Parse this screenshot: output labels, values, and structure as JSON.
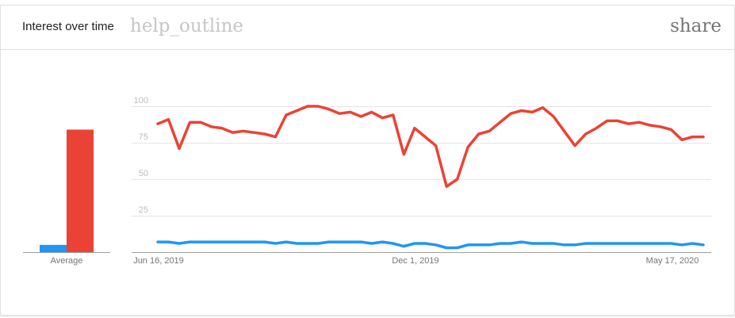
{
  "header": {
    "title": "Interest over time",
    "help_icon_text": "help_outline",
    "share_icon_text": "share"
  },
  "colors": {
    "series_red": "#ea4335",
    "series_blue": "#2196f3",
    "grid": "#e6e6e6",
    "tick_text": "#bdbdbd",
    "axis_label": "#757575"
  },
  "chart_data": [
    {
      "type": "bar",
      "categories": [
        "Average"
      ],
      "series": [
        {
          "values": [
            5
          ]
        },
        {
          "values": [
            84
          ]
        }
      ],
      "ylim": [
        0,
        100
      ]
    },
    {
      "type": "line",
      "y_ticks": [
        25,
        50,
        75,
        100
      ],
      "x_tick_labels": [
        "Jun 16, 2019",
        "Dec 1, 2019",
        "May 17, 2020"
      ],
      "ylim": [
        0,
        100
      ],
      "grid": true,
      "series": [
        {
          "values": [
            88,
            91,
            71,
            89,
            89,
            86,
            85,
            82,
            83,
            82,
            81,
            79,
            94,
            97,
            100,
            100,
            98,
            95,
            96,
            93,
            96,
            92,
            94,
            67,
            85,
            79,
            73,
            45,
            50,
            72,
            81,
            83,
            89,
            95,
            97,
            96,
            99,
            93,
            83,
            73,
            81,
            85,
            90,
            90,
            88,
            89,
            87,
            86,
            84,
            77,
            79,
            79
          ]
        },
        {
          "values": [
            7,
            7,
            6,
            7,
            7,
            7,
            7,
            7,
            7,
            7,
            7,
            6,
            7,
            6,
            6,
            6,
            7,
            7,
            7,
            7,
            6,
            7,
            6,
            4,
            6,
            6,
            5,
            3,
            3,
            5,
            5,
            5,
            6,
            6,
            7,
            6,
            6,
            6,
            5,
            5,
            6,
            6,
            6,
            6,
            6,
            6,
            6,
            6,
            6,
            5,
            6,
            5
          ]
        }
      ]
    }
  ]
}
